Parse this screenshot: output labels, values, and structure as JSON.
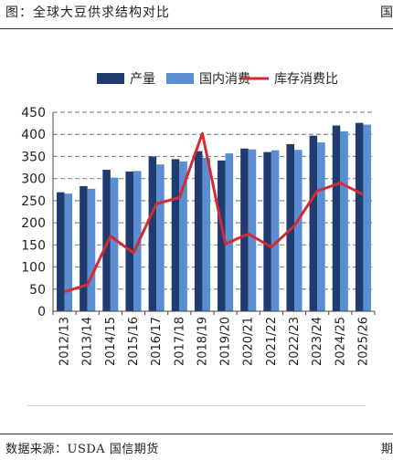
{
  "header": {
    "figure_title": "图：全球大豆供求结构对比",
    "edge_mark": "国"
  },
  "footer": {
    "source": "数据来源：USDA 国信期货",
    "edge_mark": "期"
  },
  "colors": {
    "production": "#1f3b70",
    "consumption": "#5b8ed1",
    "ratio_line": "#d42a34",
    "grid": "#888888"
  },
  "chart_data": {
    "type": "bar",
    "categories": [
      "2012/13",
      "2013/14",
      "2014/15",
      "2015/16",
      "2016/17",
      "2017/18",
      "2018/19",
      "2019/20",
      "2020/21",
      "2021/22",
      "2022/23",
      "2023/24",
      "2024/25",
      "2025/26"
    ],
    "series": [
      {
        "name": "产量",
        "type": "bar",
        "values": [
          269,
          283,
          320,
          316,
          350,
          344,
          362,
          341,
          368,
          360,
          378,
          397,
          420,
          426
        ]
      },
      {
        "name": "国内消费",
        "type": "bar",
        "values": [
          266,
          277,
          302,
          317,
          332,
          339,
          347,
          357,
          366,
          364,
          365,
          382,
          407,
          422
        ]
      },
      {
        "name": "库存消费比",
        "type": "line",
        "values": [
          44,
          60,
          170,
          132,
          243,
          257,
          402,
          152,
          175,
          145,
          193,
          272,
          290,
          264
        ]
      }
    ],
    "ylim": [
      0,
      450
    ],
    "yticks": [
      0,
      50,
      100,
      150,
      200,
      250,
      300,
      350,
      400,
      450
    ],
    "grid": "horizontal dashed",
    "legend": "top"
  }
}
